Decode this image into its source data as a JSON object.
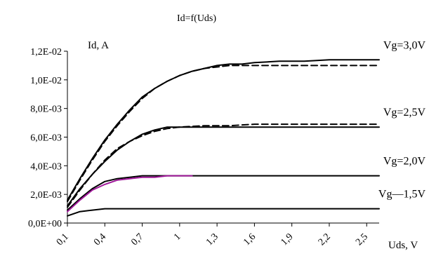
{
  "chart_data": {
    "type": "line",
    "title": "Id=f(Uds)",
    "ylabel": "Id, A",
    "xlabel": "Uds, V",
    "x_ticks": [
      "0,1",
      "0,4",
      "0,7",
      "1",
      "1,3",
      "1,6",
      "1,9",
      "2,2",
      "2,5"
    ],
    "y_ticks": [
      "0,0E+00",
      "2,0E-03",
      "4,0E-03",
      "6,0E-03",
      "8,0E-03",
      "1,0E-02",
      "1,2E-02"
    ],
    "xlim": [
      0.1,
      2.6
    ],
    "ylim": [
      0,
      0.012
    ],
    "grid": false,
    "series": [
      {
        "name": "Vg=3,0V",
        "style": "solid",
        "color": "#000000",
        "x": [
          0.1,
          0.2,
          0.3,
          0.4,
          0.5,
          0.6,
          0.7,
          0.8,
          0.9,
          1.0,
          1.1,
          1.2,
          1.3,
          1.4,
          1.5,
          1.6,
          1.8,
          2.0,
          2.2,
          2.4,
          2.6
        ],
        "values": [
          0.0016,
          0.0031,
          0.0045,
          0.0058,
          0.0069,
          0.0079,
          0.0088,
          0.0094,
          0.0099,
          0.0103,
          0.0106,
          0.0108,
          0.011,
          0.0111,
          0.0111,
          0.0112,
          0.0113,
          0.0113,
          0.0114,
          0.0114,
          0.0114
        ]
      },
      {
        "name": "Vg=3,0V model",
        "style": "dashed",
        "color": "#000000",
        "x": [
          0.1,
          0.2,
          0.3,
          0.4,
          0.5,
          0.6,
          0.7,
          0.8,
          0.9,
          1.0,
          1.1,
          1.2,
          1.3,
          1.4,
          1.5,
          1.6,
          1.8,
          2.0,
          2.2,
          2.4,
          2.6
        ],
        "values": [
          0.0015,
          0.003,
          0.0044,
          0.0057,
          0.0068,
          0.0078,
          0.0087,
          0.0094,
          0.0099,
          0.0103,
          0.0106,
          0.0108,
          0.0109,
          0.011,
          0.011,
          0.011,
          0.011,
          0.011,
          0.011,
          0.011,
          0.011
        ]
      },
      {
        "name": "Vg=2,5V",
        "style": "solid",
        "color": "#000000",
        "x": [
          0.1,
          0.2,
          0.3,
          0.4,
          0.5,
          0.6,
          0.7,
          0.8,
          0.9,
          1.0,
          1.2,
          1.4,
          1.6,
          1.8,
          2.0,
          2.2,
          2.4,
          2.6
        ],
        "values": [
          0.0012,
          0.0024,
          0.0034,
          0.0043,
          0.0051,
          0.0057,
          0.0062,
          0.0065,
          0.0067,
          0.0067,
          0.0067,
          0.0067,
          0.0067,
          0.0067,
          0.0067,
          0.0067,
          0.0067,
          0.0067
        ]
      },
      {
        "name": "Vg=2,5V model",
        "style": "dashed",
        "color": "#000000",
        "x": [
          0.1,
          0.2,
          0.3,
          0.4,
          0.5,
          0.6,
          0.7,
          0.8,
          0.9,
          1.0,
          1.2,
          1.4,
          1.6,
          1.8,
          2.0,
          2.2,
          2.4,
          2.6
        ],
        "values": [
          0.0011,
          0.0023,
          0.0034,
          0.0044,
          0.0052,
          0.0057,
          0.0061,
          0.0064,
          0.0066,
          0.0067,
          0.0068,
          0.0068,
          0.0069,
          0.0069,
          0.0069,
          0.0069,
          0.0069,
          0.0069
        ]
      },
      {
        "name": "Vg=2,0V",
        "style": "solid",
        "color": "#000000",
        "x": [
          0.1,
          0.2,
          0.3,
          0.4,
          0.5,
          0.6,
          0.7,
          0.8,
          1.0,
          1.2,
          1.4,
          1.6,
          1.8,
          2.0,
          2.2,
          2.4,
          2.6
        ],
        "values": [
          0.0009,
          0.0017,
          0.0024,
          0.0029,
          0.0031,
          0.0032,
          0.0033,
          0.0033,
          0.0033,
          0.0033,
          0.0033,
          0.0033,
          0.0033,
          0.0033,
          0.0033,
          0.0033,
          0.0033
        ]
      },
      {
        "name": "Vg=2,0V model",
        "style": "solid",
        "color": "#a0189a",
        "x": [
          0.1,
          0.2,
          0.3,
          0.4,
          0.5,
          0.6,
          0.7,
          0.8,
          0.9,
          1.0,
          1.1
        ],
        "values": [
          0.0008,
          0.0016,
          0.0023,
          0.0027,
          0.003,
          0.0031,
          0.0032,
          0.0032,
          0.0033,
          0.0033,
          0.0033
        ]
      },
      {
        "name": "Vg=1,5V",
        "style": "solid",
        "color": "#000000",
        "x": [
          0.1,
          0.2,
          0.3,
          0.4,
          0.6,
          0.8,
          1.0,
          1.4,
          1.8,
          2.2,
          2.6
        ],
        "values": [
          0.0005,
          0.0008,
          0.0009,
          0.001,
          0.001,
          0.001,
          0.001,
          0.001,
          0.001,
          0.001,
          0.001
        ]
      }
    ],
    "curve_labels": [
      {
        "text": "Vg=3,0V",
        "series": 0
      },
      {
        "text": "Vg=2,5V",
        "series": 2
      },
      {
        "text": "Vg=2,0V",
        "series": 4
      },
      {
        "text": "Vg—1,5V",
        "series": 6
      }
    ]
  }
}
